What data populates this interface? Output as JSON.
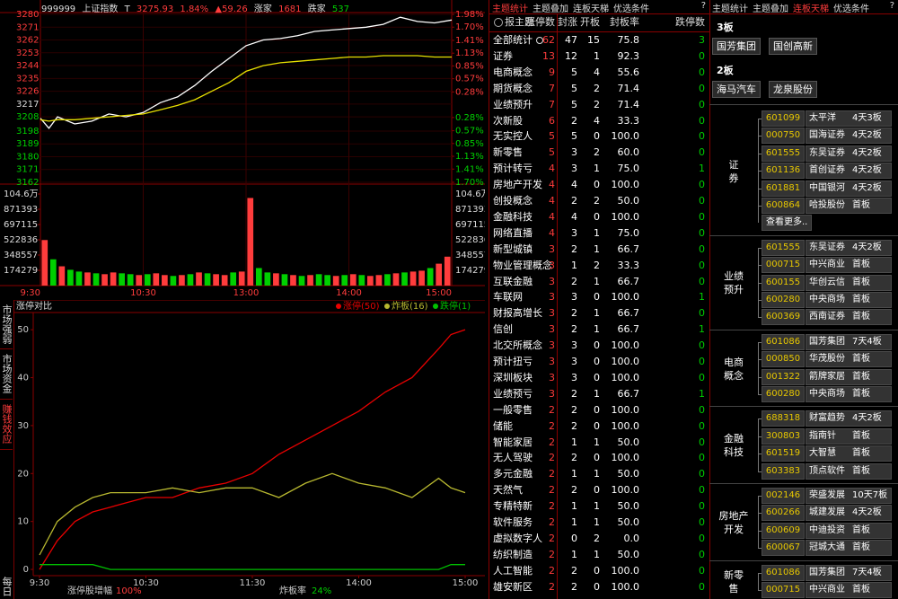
{
  "header": {
    "code": "999999",
    "name": "上证指数",
    "flag": "T",
    "price": 3275.93,
    "pct": "1.84%",
    "change": "▲59.26",
    "up_label": "涨家",
    "up_count": 1681,
    "down_label": "跌家",
    "down_count": 537
  },
  "price_chart": {
    "type": "line",
    "up_color": "#ff3c3c",
    "down_color": "#00d000",
    "grid": true,
    "x": [
      0,
      5,
      10,
      20,
      30,
      40,
      50,
      60,
      70,
      80,
      90,
      100,
      110,
      120,
      130,
      140,
      150,
      160,
      170,
      180,
      190,
      200,
      210,
      220,
      230,
      240
    ],
    "xlim": [
      0,
      240
    ],
    "xticks": [
      {
        "value": 0,
        "label": "9:30"
      },
      {
        "value": 60,
        "label": "10:30"
      },
      {
        "value": 120,
        "label": "13:00"
      },
      {
        "value": 180,
        "label": "14:00"
      },
      {
        "value": 240,
        "label": "15:00"
      }
    ],
    "series": [
      {
        "color": "#ffffff",
        "values": [
          3207,
          3200,
          3208,
          3203,
          3205,
          3210,
          3208,
          3211,
          3218,
          3222,
          3230,
          3240,
          3249,
          3258,
          3262,
          3263,
          3265,
          3268,
          3269,
          3270,
          3271,
          3273,
          3278,
          3275,
          3274,
          3276
        ]
      },
      {
        "color": "#e8e000",
        "values": [
          3206,
          3205,
          3206,
          3206,
          3207,
          3208,
          3209,
          3210,
          3213,
          3216,
          3220,
          3226,
          3232,
          3240,
          3244,
          3246,
          3247,
          3248,
          3249,
          3250,
          3250,
          3251,
          3251,
          3251,
          3250,
          3250
        ]
      }
    ],
    "ylim": [
      3162,
      3280
    ],
    "yticks": [
      3280,
      3271,
      3262,
      3253,
      3244,
      3235,
      3226,
      3217,
      3208,
      3198,
      3189,
      3180,
      3171,
      3162
    ],
    "y2lim": [
      -1.7,
      1.98
    ],
    "y2ticks": [
      {
        "value": 1.98,
        "label": "1.98%"
      },
      {
        "value": 1.7,
        "label": "1.70%"
      },
      {
        "value": 1.41,
        "label": "1.41%"
      },
      {
        "value": 1.13,
        "label": "1.13%"
      },
      {
        "value": 0.85,
        "label": "0.85%"
      },
      {
        "value": 0.57,
        "label": "0.57%"
      },
      {
        "value": 0.28,
        "label": "0.28%"
      },
      {
        "value": -0.28,
        "label": "0.28%"
      },
      {
        "value": -0.57,
        "label": "0.57%"
      },
      {
        "value": -0.85,
        "label": "0.85%"
      },
      {
        "value": -1.13,
        "label": "1.13%"
      },
      {
        "value": -1.41,
        "label": "1.41%"
      },
      {
        "value": -1.7,
        "label": "1.70%"
      }
    ],
    "volume": {
      "type": "bar",
      "x": [
        0,
        5,
        10,
        15,
        20,
        25,
        30,
        35,
        40,
        45,
        50,
        55,
        60,
        65,
        70,
        75,
        80,
        85,
        90,
        95,
        100,
        105,
        110,
        115,
        120,
        125,
        130,
        135,
        140,
        145,
        150,
        155,
        160,
        165,
        170,
        175,
        180,
        185,
        190,
        195,
        200,
        205,
        210,
        215,
        220,
        225,
        230,
        235
      ],
      "values": [
        520000,
        300000,
        220000,
        180000,
        160000,
        150000,
        140000,
        130000,
        150000,
        140000,
        130000,
        120000,
        130000,
        140000,
        120000,
        110000,
        120000,
        130000,
        150000,
        140000,
        130000,
        120000,
        150000,
        160000,
        1000000,
        200000,
        150000,
        140000,
        130000,
        120000,
        110000,
        120000,
        130000,
        120000,
        110000,
        120000,
        130000,
        120000,
        110000,
        120000,
        130000,
        140000,
        150000,
        160000,
        170000,
        200000,
        250000,
        330000
      ],
      "colors": [
        "#ff3c3c",
        "#00d000",
        "#ff3c3c",
        "#00d000",
        "#00d000",
        "#ff3c3c",
        "#00d000",
        "#ff3c3c",
        "#ff3c3c",
        "#00d000",
        "#00d000",
        "#ff3c3c",
        "#00d000",
        "#ff3c3c",
        "#ff3c3c",
        "#00d000",
        "#ff3c3c",
        "#00d000",
        "#ff3c3c",
        "#00d000",
        "#ff3c3c",
        "#ff3c3c",
        "#00d000",
        "#ff3c3c",
        "#ff3c3c",
        "#00d000",
        "#00d000",
        "#ff3c3c",
        "#00d000",
        "#ff3c3c",
        "#00d000",
        "#ff3c3c",
        "#00d000",
        "#00d000",
        "#ff3c3c",
        "#00d000",
        "#ff3c3c",
        "#00d000",
        "#ff3c3c",
        "#ff3c3c",
        "#00d000",
        "#ff3c3c",
        "#00d000",
        "#ff3c3c",
        "#ff3c3c",
        "#00d000",
        "#ff3c3c",
        "#ff3c3c"
      ],
      "ylim": [
        0,
        1045674
      ],
      "yticks": [
        {
          "value": 1045674,
          "label": "104.6万"
        },
        871393,
        697115,
        522836,
        348557,
        174279
      ]
    }
  },
  "side_tabs": [
    "市场强弱",
    "市场资金",
    "赚钱效应",
    "每日"
  ],
  "limit_chart": {
    "type": "line",
    "title": "涨停对比",
    "x": [
      0,
      10,
      20,
      30,
      40,
      50,
      60,
      75,
      90,
      105,
      120,
      135,
      150,
      165,
      180,
      195,
      210,
      225,
      232,
      240
    ],
    "xlim": [
      0,
      240
    ],
    "xticks": [
      {
        "value": 0,
        "label": "9:30"
      },
      {
        "value": 60,
        "label": "10:30"
      },
      {
        "value": 120,
        "label": "11:30"
      },
      {
        "value": 180,
        "label": "14:00"
      },
      {
        "value": 240,
        "label": "15:00"
      }
    ],
    "ylim": [
      -1.3,
      53.4
    ],
    "yticks": [
      0,
      10,
      20,
      30,
      40,
      50
    ],
    "grid": false,
    "series": [
      {
        "name": "涨停(50)",
        "color": "#e80000",
        "values": [
          0,
          6,
          10,
          12,
          13,
          14,
          15,
          15,
          17,
          18,
          20,
          24,
          27,
          30,
          33,
          37,
          40,
          46,
          49,
          50
        ]
      },
      {
        "name": "炸板(16)",
        "color": "#b8b830",
        "values": [
          3,
          10,
          13,
          15,
          16,
          16,
          16,
          17,
          16,
          17,
          17,
          15,
          18,
          20,
          18,
          17,
          15,
          19,
          17,
          16
        ]
      },
      {
        "name": "跌停(1)",
        "color": "#00c000",
        "values": [
          1,
          1,
          1,
          1,
          0,
          0,
          0,
          0,
          0,
          0,
          0,
          0,
          0,
          0,
          0,
          0,
          0,
          0,
          1,
          1
        ]
      }
    ],
    "footer": [
      {
        "label": "涨停股增幅",
        "value": "100%"
      },
      {
        "label": "炸板率",
        "value": "24%"
      }
    ]
  },
  "table": {
    "tabs": [
      "主题统计",
      "主题叠加",
      "连板天梯",
      "优选条件"
    ],
    "help": "?",
    "header": [
      "报主题",
      "涨停数",
      "封涨",
      "开板",
      "封板率",
      "跌停数"
    ],
    "rows": [
      [
        "全部统计",
        62,
        47,
        15,
        "75.8",
        3
      ],
      [
        "证券",
        13,
        12,
        1,
        "92.3",
        0
      ],
      [
        "电商概念",
        9,
        5,
        4,
        "55.6",
        0
      ],
      [
        "期货概念",
        7,
        5,
        2,
        "71.4",
        0
      ],
      [
        "业绩预升",
        7,
        5,
        2,
        "71.4",
        0
      ],
      [
        "次新股",
        6,
        2,
        4,
        "33.3",
        0
      ],
      [
        "无实控人",
        5,
        5,
        0,
        "100.0",
        0
      ],
      [
        "新零售",
        5,
        3,
        2,
        "60.0",
        0
      ],
      [
        "预计转亏",
        4,
        3,
        1,
        "75.0",
        1
      ],
      [
        "房地产开发",
        4,
        4,
        0,
        "100.0",
        0
      ],
      [
        "创投概念",
        4,
        2,
        2,
        "50.0",
        0
      ],
      [
        "金融科技",
        4,
        4,
        0,
        "100.0",
        0
      ],
      [
        "网络直播",
        4,
        3,
        1,
        "75.0",
        0
      ],
      [
        "新型城镇",
        3,
        2,
        1,
        "66.7",
        0
      ],
      [
        "物业管理概念",
        3,
        1,
        2,
        "33.3",
        0
      ],
      [
        "互联金融",
        3,
        2,
        1,
        "66.7",
        0
      ],
      [
        "车联网",
        3,
        3,
        0,
        "100.0",
        1
      ],
      [
        "财报高增长",
        3,
        2,
        1,
        "66.7",
        0
      ],
      [
        "信创",
        3,
        2,
        1,
        "66.7",
        1
      ],
      [
        "北交所概念",
        3,
        3,
        0,
        "100.0",
        0
      ],
      [
        "预计扭亏",
        3,
        3,
        0,
        "100.0",
        0
      ],
      [
        "深圳板块",
        3,
        3,
        0,
        "100.0",
        0
      ],
      [
        "业绩预亏",
        3,
        2,
        1,
        "66.7",
        1
      ],
      [
        "一般零售",
        2,
        2,
        0,
        "100.0",
        0
      ],
      [
        "储能",
        2,
        2,
        0,
        "100.0",
        0
      ],
      [
        "智能家居",
        2,
        1,
        1,
        "50.0",
        0
      ],
      [
        "无人驾驶",
        2,
        2,
        0,
        "100.0",
        0
      ],
      [
        "多元金融",
        2,
        1,
        1,
        "50.0",
        0
      ],
      [
        "天然气",
        2,
        2,
        0,
        "100.0",
        0
      ],
      [
        "专精特新",
        2,
        1,
        1,
        "50.0",
        0
      ],
      [
        "软件服务",
        2,
        1,
        1,
        "50.0",
        0
      ],
      [
        "虚拟数字人",
        2,
        0,
        2,
        "0.0",
        0
      ],
      [
        "纺织制造",
        2,
        1,
        1,
        "50.0",
        0
      ],
      [
        "人工智能",
        2,
        2,
        0,
        "100.0",
        0
      ],
      [
        "雄安新区",
        2,
        2,
        0,
        "100.0",
        0
      ]
    ]
  },
  "ladder": {
    "tabs": [
      "主题统计",
      "主题叠加",
      "连板天梯",
      "优选条件"
    ],
    "help": "?",
    "boards": [
      {
        "title": "3板",
        "stocks": [
          "国芳集团",
          "国创高新"
        ]
      },
      {
        "title": "2板",
        "stocks": [
          "海马汽车",
          "龙泉股份"
        ]
      }
    ],
    "groups": [
      {
        "name": "证券",
        "rows": [
          [
            "601099",
            "太平洋",
            "4天3板"
          ],
          [
            "000750",
            "国海证券",
            "4天2板"
          ],
          [
            "601555",
            "东吴证券",
            "4天2板"
          ],
          [
            "601136",
            "首创证券",
            "4天2板"
          ],
          [
            "601881",
            "中国银河",
            "4天2板"
          ],
          [
            "600864",
            "哈投股份",
            "首板"
          ]
        ],
        "more": "查看更多.."
      },
      {
        "name": "业绩预升",
        "rows": [
          [
            "601555",
            "东吴证券",
            "4天2板"
          ],
          [
            "000715",
            "中兴商业",
            "首板"
          ],
          [
            "600155",
            "华创云信",
            "首板"
          ],
          [
            "600280",
            "中央商场",
            "首板"
          ],
          [
            "600369",
            "西南证券",
            "首板"
          ]
        ]
      },
      {
        "name": "电商概念",
        "rows": [
          [
            "601086",
            "国芳集团",
            "7天4板"
          ],
          [
            "000850",
            "华茂股份",
            "首板"
          ],
          [
            "001322",
            "箭牌家居",
            "首板"
          ],
          [
            "600280",
            "中央商场",
            "首板"
          ]
        ]
      },
      {
        "name": "金融科技",
        "rows": [
          [
            "688318",
            "财富趋势",
            "4天2板"
          ],
          [
            "300803",
            "指南针",
            "首板"
          ],
          [
            "601519",
            "大智慧",
            "首板"
          ],
          [
            "603383",
            "顶点软件",
            "首板"
          ]
        ]
      },
      {
        "name": "房地产开发",
        "rows": [
          [
            "002146",
            "荣盛发展",
            "10天7板"
          ],
          [
            "600266",
            "城建发展",
            "4天2板"
          ],
          [
            "600609",
            "中迪投资",
            "首板"
          ],
          [
            "600067",
            "冠城大通",
            "首板"
          ]
        ]
      },
      {
        "name": "新零售",
        "rows": [
          [
            "601086",
            "国芳集团",
            "7天4板"
          ],
          [
            "000715",
            "中兴商业",
            "首板"
          ]
        ]
      }
    ]
  }
}
